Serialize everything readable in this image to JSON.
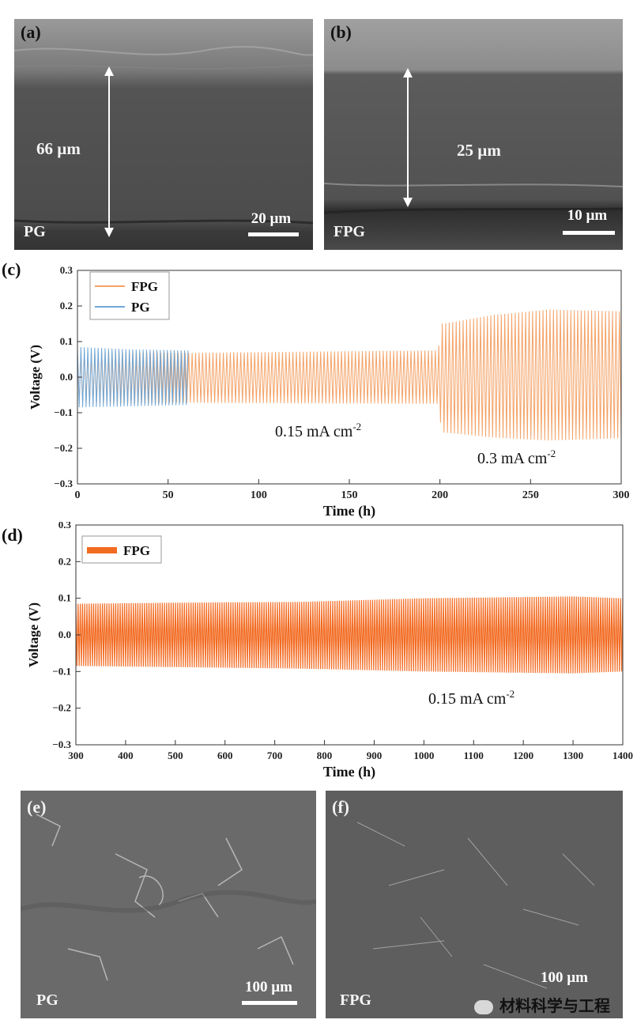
{
  "panels": {
    "a": {
      "label": "(a)",
      "sample": "PG",
      "thickness": "66 µm",
      "scale": "20 µm"
    },
    "b": {
      "label": "(b)",
      "sample": "FPG",
      "thickness": "25 µm",
      "scale": "10 µm"
    },
    "e": {
      "label": "(e)",
      "sample": "PG",
      "scale": "100 µm"
    },
    "f": {
      "label": "(f)",
      "sample": "FPG",
      "scale": "100 µm"
    }
  },
  "watermark": "材料科学与工程",
  "chart_data": [
    {
      "panel": "(c)",
      "type": "line",
      "xlabel": "Time (h)",
      "ylabel": "Voltage (V)",
      "xlim": [
        0,
        300
      ],
      "ylim": [
        -0.3,
        0.3
      ],
      "xticks": [
        "0",
        "50",
        "100",
        "150",
        "200",
        "250",
        "300"
      ],
      "yticks": [
        "-0.3",
        "-0.2",
        "-0.1",
        "0.0",
        "0.1",
        "0.2",
        "0.3"
      ],
      "legend": [
        "FPG",
        "PG"
      ],
      "annotations": [
        {
          "text": "0.15 mA cm",
          "sup": "-2"
        },
        {
          "text": "0.3 mA cm",
          "sup": "-2"
        }
      ],
      "series": [
        {
          "name": "FPG",
          "color": "#f4a266",
          "envelope": [
            [
              0,
              0.07,
              -0.075
            ],
            [
              60,
              0.068,
              -0.072
            ],
            [
              100,
              0.07,
              -0.073
            ],
            [
              150,
              0.073,
              -0.074
            ],
            [
              199,
              0.075,
              -0.075
            ],
            [
              201,
              0.15,
              -0.155
            ],
            [
              230,
              0.175,
              -0.17
            ],
            [
              260,
              0.19,
              -0.178
            ],
            [
              300,
              0.185,
              -0.172
            ]
          ]
        },
        {
          "name": "PG",
          "color": "#6fa7d8",
          "envelope": [
            [
              0,
              0.085,
              -0.085
            ],
            [
              30,
              0.078,
              -0.082
            ],
            [
              61,
              0.075,
              -0.078
            ]
          ]
        }
      ]
    },
    {
      "panel": "(d)",
      "type": "line",
      "xlabel": "Time (h)",
      "ylabel": "Voltage (V)",
      "xlim": [
        300,
        1400
      ],
      "ylim": [
        -0.3,
        0.3
      ],
      "xticks": [
        "300",
        "400",
        "500",
        "600",
        "700",
        "800",
        "900",
        "1000",
        "1100",
        "1200",
        "1300",
        "1400"
      ],
      "yticks": [
        "-0.3",
        "-0.2",
        "-0.1",
        "0.0",
        "0.1",
        "0.2",
        "0.3"
      ],
      "legend": [
        "FPG"
      ],
      "annotations": [
        {
          "text": "0.15 mA cm",
          "sup": "-2"
        }
      ],
      "series": [
        {
          "name": "FPG",
          "color": "#f26b22",
          "envelope": [
            [
              300,
              0.085,
              -0.085
            ],
            [
              500,
              0.088,
              -0.088
            ],
            [
              750,
              0.09,
              -0.092
            ],
            [
              1000,
              0.1,
              -0.1
            ],
            [
              1300,
              0.105,
              -0.105
            ],
            [
              1400,
              0.1,
              -0.1
            ]
          ]
        }
      ]
    }
  ]
}
